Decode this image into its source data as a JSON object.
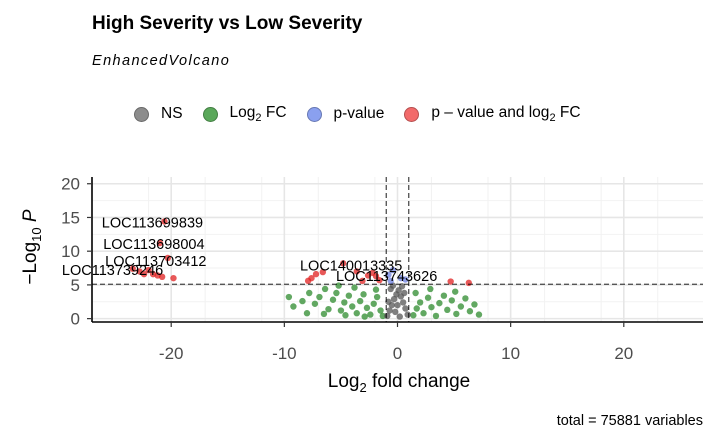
{
  "header": {
    "title": "High Severity vs Low Severity",
    "subtitle": "EnhancedVolcano"
  },
  "legend": {
    "items": [
      {
        "label": "NS",
        "color": "#8c8c8c"
      },
      {
        "label_html": "Log<sub>2</sub> FC",
        "label": "Log2 FC",
        "color": "#5aa85a"
      },
      {
        "label": "p-value",
        "color": "#8aa0ef"
      },
      {
        "label_html": "p &#8211; value and log<sub>2</sub> FC",
        "label": "p – value and log2 FC",
        "color": "#f26a6a"
      }
    ]
  },
  "caption": "total = 75881 variables",
  "chart_data": {
    "type": "scatter",
    "title": "High Severity vs Low Severity",
    "subtitle": "EnhancedVolcano",
    "xlabel": "Log2 fold change",
    "ylabel": "-Log10 P",
    "xlim": [
      -27,
      27
    ],
    "ylim": [
      -0.5,
      21
    ],
    "xticks": [
      -20,
      -10,
      0,
      10,
      20
    ],
    "yticks": [
      0,
      5,
      10,
      15,
      20
    ],
    "grid": true,
    "legend_position": "top",
    "thresholds": {
      "log2fc": [
        -1,
        1
      ],
      "neg_log10_p": 5.1
    },
    "colors": {
      "NS": "#595959",
      "Log2 FC": "#2e8b2e",
      "p-value": "#6c7fe0",
      "p - value and log2 FC": "#e02020"
    },
    "labeled_points": [
      {
        "label": "LOC113699839",
        "x": -20.6,
        "y": 14.4
      },
      {
        "label": "LOC113698004",
        "x": -21.0,
        "y": 11.2
      },
      {
        "label": "LOC113703412",
        "x": -20.3,
        "y": 9.0
      },
      {
        "label": "LOC113739246",
        "x": -22.0,
        "y": 7.2
      },
      {
        "label": "LOC140013335",
        "x": -4.8,
        "y": 8.2
      },
      {
        "label": "LOC113743626",
        "x": -2.2,
        "y": 6.8
      }
    ],
    "series": [
      {
        "name": "p – value and log2 FC",
        "points": [
          [
            -20.6,
            14.4
          ],
          [
            -21.0,
            11.2
          ],
          [
            -20.3,
            9.0
          ],
          [
            -22.0,
            7.2
          ],
          [
            -21.6,
            6.6
          ],
          [
            -22.8,
            7.0
          ],
          [
            -21.2,
            6.4
          ],
          [
            -23.4,
            7.4
          ],
          [
            -20.8,
            6.2
          ],
          [
            -22.4,
            6.6
          ],
          [
            -19.8,
            6.0
          ],
          [
            -7.6,
            6.0
          ],
          [
            -7.2,
            6.6
          ],
          [
            -6.6,
            6.9
          ],
          [
            -7.9,
            5.6
          ],
          [
            -4.8,
            8.2
          ],
          [
            -3.6,
            7.0
          ],
          [
            -2.6,
            6.4
          ],
          [
            -2.2,
            6.8
          ],
          [
            -1.9,
            6.3
          ],
          [
            -1.6,
            5.7
          ],
          [
            -3.1,
            5.6
          ],
          [
            6.3,
            5.3
          ],
          [
            4.7,
            5.5
          ]
        ]
      },
      {
        "name": "p-value",
        "points": [
          [
            -0.8,
            6.5
          ],
          [
            -0.4,
            7.2
          ],
          [
            0.3,
            6.0
          ],
          [
            -0.6,
            5.6
          ],
          [
            0.7,
            5.8
          ]
        ]
      },
      {
        "name": "Log2 FC",
        "points": [
          [
            -9.6,
            3.2
          ],
          [
            -9.2,
            1.8
          ],
          [
            -8.4,
            2.6
          ],
          [
            -7.8,
            3.8
          ],
          [
            -7.3,
            2.2
          ],
          [
            -6.9,
            3.2
          ],
          [
            -6.4,
            4.4
          ],
          [
            -6.1,
            1.4
          ],
          [
            -5.7,
            2.8
          ],
          [
            -5.4,
            3.8
          ],
          [
            -5.0,
            1.2
          ],
          [
            -4.7,
            2.4
          ],
          [
            -4.3,
            3.4
          ],
          [
            -4.0,
            1.8
          ],
          [
            -3.6,
            0.8
          ],
          [
            -3.3,
            2.6
          ],
          [
            -3.0,
            3.6
          ],
          [
            -2.7,
            1.6
          ],
          [
            -2.4,
            0.6
          ],
          [
            -2.1,
            2.2
          ],
          [
            -1.8,
            3.2
          ],
          [
            -1.5,
            1.2
          ],
          [
            -1.3,
            0.4
          ],
          [
            -2.9,
            0.3
          ],
          [
            -4.6,
            0.5
          ],
          [
            -6.5,
            0.7
          ],
          [
            -8.0,
            0.8
          ],
          [
            -1.9,
            4.3
          ],
          [
            -3.8,
            4.6
          ],
          [
            -5.2,
            4.9
          ],
          [
            1.4,
            0.5
          ],
          [
            1.7,
            1.5
          ],
          [
            2.0,
            2.4
          ],
          [
            2.3,
            0.8
          ],
          [
            2.7,
            3.1
          ],
          [
            3.0,
            1.7
          ],
          [
            3.4,
            0.4
          ],
          [
            3.7,
            2.3
          ],
          [
            4.1,
            3.4
          ],
          [
            4.4,
            1.3
          ],
          [
            4.8,
            2.7
          ],
          [
            5.2,
            0.7
          ],
          [
            5.6,
            1.8
          ],
          [
            6.0,
            3.0
          ],
          [
            6.4,
            1.1
          ],
          [
            6.8,
            2.1
          ],
          [
            7.2,
            0.6
          ],
          [
            1.6,
            3.8
          ],
          [
            2.9,
            4.4
          ],
          [
            5.1,
            4.0
          ]
        ]
      },
      {
        "name": "NS",
        "points": [
          [
            -0.9,
            0.4
          ],
          [
            -0.7,
            1.2
          ],
          [
            -0.5,
            2.0
          ],
          [
            -0.3,
            2.9
          ],
          [
            -0.1,
            3.6
          ],
          [
            0.1,
            4.2
          ],
          [
            0.3,
            3.3
          ],
          [
            0.5,
            2.4
          ],
          [
            0.7,
            1.5
          ],
          [
            0.9,
            0.6
          ],
          [
            -0.8,
            2.5
          ],
          [
            -0.2,
            1.0
          ],
          [
            0.2,
            0.3
          ],
          [
            0.6,
            3.8
          ],
          [
            -0.6,
            4.4
          ],
          [
            0.0,
            2.0
          ],
          [
            0.4,
            4.8
          ],
          [
            -0.4,
            4.9
          ]
        ]
      }
    ]
  }
}
